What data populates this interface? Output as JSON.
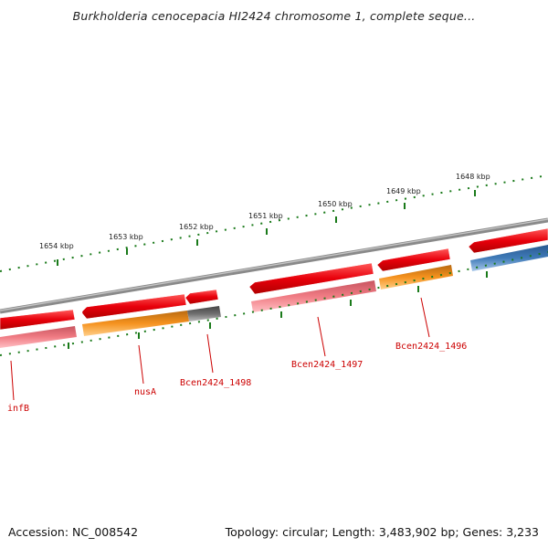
{
  "title": "Burkholderia cenocepacia HI2424 chromosome 1, complete seque...",
  "footer": {
    "accession": "Accession: NC_008542",
    "topology": "Topology: circular; Length: 3,483,902 bp; Genes: 3,233"
  },
  "scale_labels": [
    "1654 kbp",
    "1653 kbp",
    "1652 kbp",
    "1651 kbp",
    "1650 kbp",
    "1649 kbp",
    "1648 kbp"
  ],
  "gene_labels": [
    "infB",
    "nusA",
    "Bcen2424_1498",
    "Bcen2424_1497",
    "Bcen2424_1496"
  ],
  "colors": {
    "gene": "#e8000b",
    "cds_pink": "#f07c84",
    "cds_orange": "#f5921e",
    "cds_gray": "#6f6f6f",
    "cds_blue": "#3f7ab8",
    "tick": "#1a7a1a",
    "backbone": "#888888",
    "label": "#cc0000"
  }
}
